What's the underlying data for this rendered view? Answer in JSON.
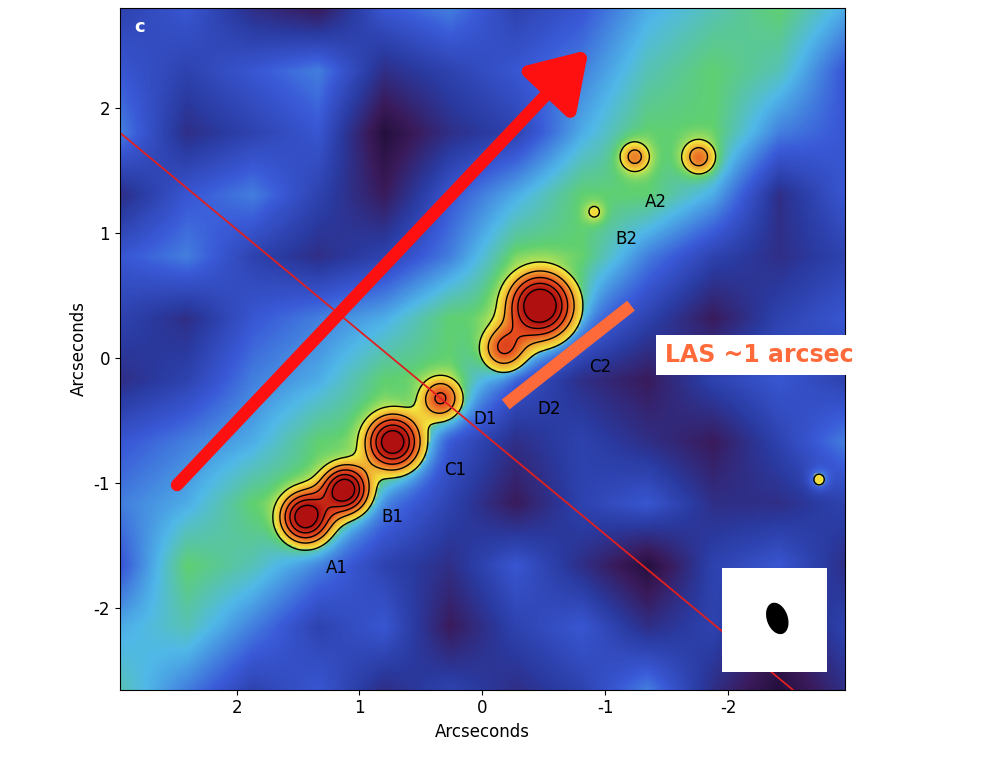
{
  "chart_data": {
    "type": "image",
    "panel_label": "c",
    "x_label": "Arcseconds",
    "y_label": "Arcseconds",
    "xlim": [
      2.95,
      -2.95
    ],
    "ylim": [
      -2.65,
      2.8
    ],
    "xticks": [
      2,
      1,
      0,
      -1,
      -2
    ],
    "yticks": [
      -2,
      -1,
      0,
      1,
      2
    ],
    "background_cells": [
      [
        0.4,
        0.5,
        0.3,
        0.2,
        0.5,
        0.6,
        0.4,
        0.5,
        0.7,
        0.8,
        0.9,
        0.7
      ],
      [
        0.5,
        0.4,
        0.5,
        0.6,
        0.3,
        0.4,
        0.5,
        0.6,
        0.8,
        0.9,
        0.8,
        0.5
      ],
      [
        0.6,
        0.3,
        0.4,
        0.5,
        0.1,
        0.3,
        0.4,
        0.7,
        0.9,
        0.9,
        0.6,
        0.5
      ],
      [
        0.3,
        0.5,
        0.6,
        0.4,
        0.2,
        0.5,
        0.7,
        0.9,
        0.9,
        0.7,
        0.3,
        0.5
      ],
      [
        0.5,
        0.6,
        0.4,
        0.3,
        0.4,
        0.6,
        0.9,
        0.9,
        0.6,
        0.4,
        0.3,
        0.4
      ],
      [
        0.4,
        0.3,
        0.5,
        0.6,
        0.7,
        0.9,
        0.9,
        0.6,
        0.4,
        0.2,
        0.4,
        0.5
      ],
      [
        0.3,
        0.4,
        0.6,
        0.7,
        0.9,
        0.9,
        0.5,
        0.3,
        0.2,
        0.4,
        0.5,
        0.4
      ],
      [
        0.5,
        0.6,
        0.7,
        0.9,
        0.9,
        0.5,
        0.3,
        0.4,
        0.3,
        0.2,
        0.4,
        0.6
      ],
      [
        0.6,
        0.7,
        0.9,
        0.9,
        0.6,
        0.4,
        0.2,
        0.4,
        0.5,
        0.3,
        0.3,
        0.4
      ],
      [
        0.5,
        0.9,
        0.8,
        0.6,
        0.4,
        0.3,
        0.5,
        0.3,
        0.1,
        0.4,
        0.5,
        0.3
      ],
      [
        0.7,
        0.8,
        0.6,
        0.4,
        0.5,
        0.2,
        0.4,
        0.5,
        0.3,
        0.4,
        0.2,
        0.4
      ],
      [
        0.8,
        0.6,
        0.4,
        0.5,
        0.3,
        0.4,
        0.3,
        0.4,
        0.6,
        0.3,
        0.1,
        0.3
      ]
    ],
    "sources": [
      {
        "x": 1.44,
        "y": -1.27,
        "peak": 6,
        "size": 0.14
      },
      {
        "x": 1.12,
        "y": -1.05,
        "peak": 6,
        "size": 0.13
      },
      {
        "x": 0.73,
        "y": -0.67,
        "peak": 6,
        "size": 0.15
      },
      {
        "x": 0.34,
        "y": -0.32,
        "peak": 3.2,
        "size": 0.12
      },
      {
        "x": -0.47,
        "y": 0.42,
        "peak": 6.5,
        "size": 0.18
      },
      {
        "x": -0.17,
        "y": 0.08,
        "peak": 3,
        "size": 0.13
      },
      {
        "x": -1.24,
        "y": 1.61,
        "peak": 2.4,
        "size": 0.09
      },
      {
        "x": -1.76,
        "y": 1.61,
        "peak": 2.6,
        "size": 0.1
      },
      {
        "x": -0.91,
        "y": 1.17,
        "peak": 1.3,
        "size": 0.06
      },
      {
        "x": -2.74,
        "y": -0.97,
        "peak": 1.3,
        "size": 0.06
      }
    ],
    "contour_levels": [
      1,
      2,
      3,
      4,
      5
    ],
    "labels": [
      {
        "text": "A1",
        "x": 1.18,
        "y": -1.68
      },
      {
        "text": "B1",
        "x": 0.73,
        "y": -1.27
      },
      {
        "text": "C1",
        "x": 0.22,
        "y": -0.89
      },
      {
        "text": "D1",
        "x": -0.02,
        "y": -0.49
      },
      {
        "text": "D2",
        "x": -0.54,
        "y": -0.41
      },
      {
        "text": "C2",
        "x": -0.96,
        "y": -0.07
      },
      {
        "text": "B2",
        "x": -1.17,
        "y": 0.95
      },
      {
        "text": "A2",
        "x": -1.41,
        "y": 1.25
      }
    ],
    "critical_line": {
      "x": [
        2.96,
        -2.6
      ],
      "y": [
        1.81,
        -2.71
      ]
    },
    "arrow": {
      "x": [
        2.5,
        -0.88
      ],
      "y": [
        -1.03,
        2.48
      ]
    },
    "las_bar": {
      "x": [
        -0.19,
        -1.21
      ],
      "y": [
        -0.37,
        0.42
      ]
    },
    "las_text": "LAS ~1 arcsec",
    "beam": {
      "x": -2.4,
      "y": -2.08,
      "major": 0.26,
      "minor": 0.17
    }
  }
}
